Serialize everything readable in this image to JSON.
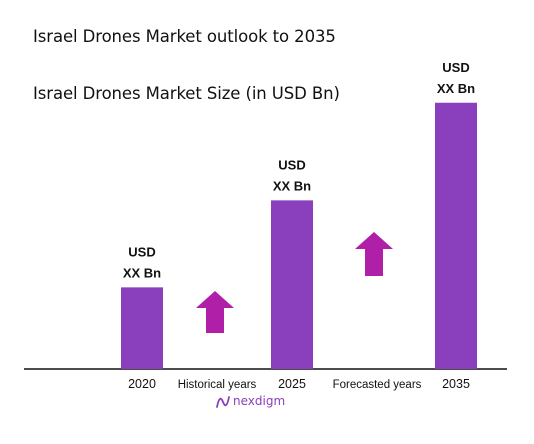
{
  "header": {
    "title": "Israel Drones Market outlook to 2035",
    "subtitle": "Israel Drones Market Size (in USD Bn)"
  },
  "chart_data": {
    "type": "bar",
    "title": "Israel Drones Market outlook to 2035",
    "subtitle": "Israel Drones Market Size (in USD Bn)",
    "categories": [
      "2020",
      "2025",
      "2035"
    ],
    "values": [
      4.6,
      9.5,
      15.0
    ],
    "ylim": [
      0,
      16
    ],
    "data_labels": [
      {
        "line1": "USD",
        "line2": "XX Bn"
      },
      {
        "line1": "USD",
        "line2": "XX Bn"
      },
      {
        "line1": "USD",
        "line2": "XX Bn"
      }
    ],
    "phase_labels": [
      "Historical years",
      "Forecasted years"
    ],
    "bar_color": "#8a3fbd",
    "arrow_color": "#b01fa8",
    "grid": false,
    "legend": "none"
  },
  "branding": {
    "logo_text": "nexdigm",
    "logo_icon": "nexdigm-wave-icon",
    "color": "#8a3fbd"
  }
}
